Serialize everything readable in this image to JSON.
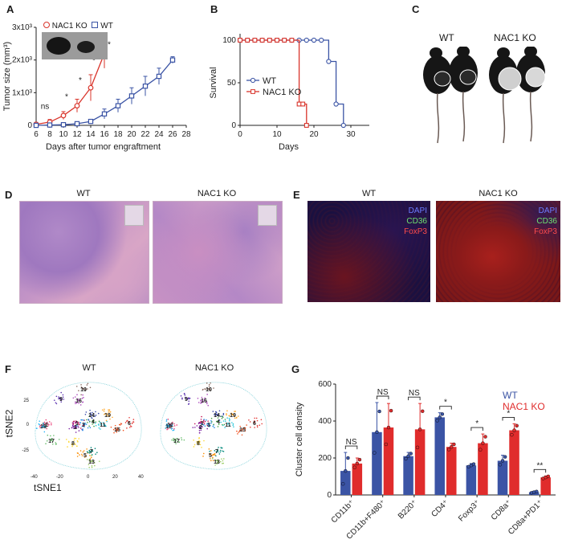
{
  "panels": {
    "A": {
      "label": "A",
      "ylabel": "Tumor size (mm³)",
      "xlabel": "Days after tumor engraftment",
      "yticks": [
        "0",
        "1x10³",
        "2x10³",
        "3x10³"
      ],
      "xticks": [
        "6",
        "8",
        "10",
        "12",
        "14",
        "16",
        "18",
        "20",
        "22",
        "24",
        "26",
        "28"
      ],
      "legend": [
        "NAC1 KO",
        "WT"
      ],
      "sig": [
        "ns",
        "*",
        "*",
        "*",
        "**"
      ]
    },
    "B": {
      "label": "B",
      "ylabel": "Survival",
      "xlabel": "Days",
      "yticks": [
        "0",
        "50",
        "100"
      ],
      "xticks": [
        "0",
        "10",
        "20",
        "30"
      ],
      "legend": [
        "WT",
        "NAC1 KO"
      ]
    },
    "C": {
      "label": "C",
      "groups": [
        "WT",
        "NAC1 KO"
      ]
    },
    "D": {
      "label": "D",
      "groups": [
        "WT",
        "NAC1 KO"
      ]
    },
    "E": {
      "label": "E",
      "groups": [
        "WT",
        "NAC1 KO"
      ],
      "channels": [
        "DAPI",
        "CD36",
        "FoxP3"
      ]
    },
    "F": {
      "label": "F",
      "groups": [
        "WT",
        "NAC1 KO"
      ],
      "xlabel": "tSNE1",
      "ylabel": "tSNE2",
      "xticks": [
        "-40",
        "-20",
        "0",
        "20",
        "40"
      ],
      "yticks": [
        "-25",
        "0",
        "25"
      ],
      "clusters": [
        "1",
        "2",
        "3",
        "4",
        "5",
        "6",
        "7",
        "8",
        "9",
        "10",
        "11",
        "12",
        "13",
        "14",
        "15",
        "16",
        "17",
        "18",
        "19"
      ]
    },
    "G": {
      "label": "G",
      "ylabel": "Cluster cell density",
      "yticks": [
        "0",
        "200",
        "400",
        "600"
      ],
      "legend": [
        "WT",
        "NAC1 KO"
      ],
      "sig": [
        "NS",
        "NS",
        "NS",
        "*",
        "*",
        "*",
        "**"
      ]
    }
  },
  "chart_data": [
    {
      "type": "line",
      "panel": "A",
      "ylabel": "Tumor size (mm³)",
      "xlabel": "Days after tumor engraftment",
      "xlim": [
        6,
        28
      ],
      "ylim": [
        0,
        3000
      ],
      "series": [
        {
          "name": "NAC1 KO",
          "color": "#d9342b",
          "x": [
            6,
            8,
            10,
            12,
            14,
            16
          ],
          "y": [
            30,
            100,
            300,
            600,
            1150,
            2200
          ],
          "err": [
            60,
            80,
            120,
            200,
            400,
            450
          ]
        },
        {
          "name": "WT",
          "color": "#3b54a5",
          "x": [
            6,
            8,
            10,
            12,
            14,
            16,
            18,
            20,
            22,
            24,
            26
          ],
          "y": [
            0,
            10,
            20,
            50,
            120,
            350,
            600,
            900,
            1200,
            1500,
            2000
          ],
          "err": [
            0,
            20,
            30,
            40,
            60,
            150,
            200,
            250,
            300,
            250,
            100
          ]
        }
      ]
    },
    {
      "type": "line",
      "panel": "B",
      "ylabel": "Survival",
      "xlabel": "Days",
      "xlim": [
        0,
        35
      ],
      "ylim": [
        0,
        100
      ],
      "series": [
        {
          "name": "WT",
          "color": "#3b54a5",
          "x": [
            0,
            2,
            4,
            6,
            8,
            10,
            12,
            14,
            16,
            18,
            20,
            22,
            24,
            26,
            28
          ],
          "y": [
            100,
            100,
            100,
            100,
            100,
            100,
            100,
            100,
            100,
            100,
            100,
            100,
            75,
            25,
            0
          ]
        },
        {
          "name": "NAC1 KO",
          "color": "#d9342b",
          "x": [
            0,
            2,
            4,
            6,
            8,
            10,
            12,
            14,
            16,
            17,
            18
          ],
          "y": [
            100,
            100,
            100,
            100,
            100,
            100,
            100,
            100,
            25,
            25,
            0
          ]
        }
      ]
    },
    {
      "type": "bar",
      "panel": "G",
      "ylabel": "Cluster cell density",
      "ylim": [
        0,
        600
      ],
      "categories": [
        "CD11b⁺",
        "CD11b+F480⁺",
        "B220⁺",
        "CD4⁺",
        "Foxp3⁺",
        "CD8a⁺",
        "CD8a+PD1⁺"
      ],
      "series": [
        {
          "name": "WT",
          "color": "#3b54a5",
          "values": [
            130,
            340,
            210,
            420,
            160,
            185,
            15
          ],
          "err": [
            100,
            160,
            20,
            25,
            10,
            30,
            5
          ]
        },
        {
          "name": "NAC1 KO",
          "color": "#e02c2c",
          "values": [
            170,
            365,
            355,
            260,
            280,
            350,
            95
          ],
          "err": [
            30,
            130,
            140,
            20,
            50,
            35,
            8
          ]
        }
      ]
    }
  ]
}
